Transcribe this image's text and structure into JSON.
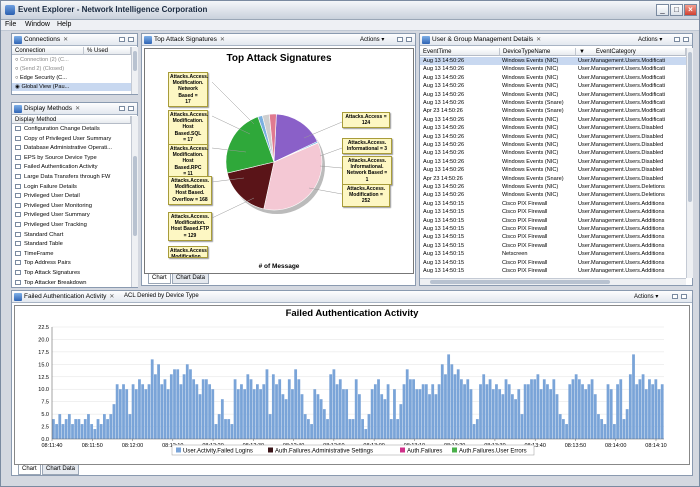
{
  "window": {
    "title": "Event Explorer - Network Intelligence Corporation"
  },
  "menu": [
    "File",
    "Window",
    "Help"
  ],
  "connections": {
    "tab": "Connections",
    "headers": [
      "Connection",
      "% Used"
    ],
    "rows": [
      "Connection (2) (C...",
      "(Send 2) (Closed)",
      "Edge Security (C...",
      "Global View (Pau..."
    ]
  },
  "display_methods": {
    "tab": "Display Methods",
    "header": "Display Method",
    "items": [
      "Configuration Change Details",
      "Copy of Privileged User Summary",
      "Database Administrative Operati...",
      "EPS by Source Device Type",
      "Failed Authentication Activity",
      "Large Data Transfers through FW",
      "Login Failure Details",
      "Privileged User Detail",
      "Privileged User Monitoring",
      "Privileged User Summary",
      "Privileged User Tracking",
      "Standard Chart",
      "Standard Table",
      "TimeFrame",
      "Top Address Pairs",
      "Top Attack Signatures",
      "Top Attacker Breakdown"
    ]
  },
  "pie_panel": {
    "tab": "Top Attack Signatures",
    "actions": "Actions",
    "title": "Top Attack Signatures",
    "xlabel": "# of Message",
    "bottom_tabs": [
      "Chart",
      "Chart Data"
    ],
    "callouts_left": [
      "Attacks.Access.\nModification.\nNetwork Based =\n17",
      "Attacks.Access.\nModification.\nHost Based.SQL\n= 17",
      "Attacks.Access.\nModification.\nHost Based.RPC\n= 11",
      "Attacks.Access.\nModification.\nHost Based.\nOverflow = 168",
      "Attacks.Access.\nModification.\nHost Based.FTP\n= 129",
      "Attacks.Access.\nModification..."
    ],
    "callouts_right": [
      "Attacks.Access =\n124",
      "Attacks.Access.\nInformational = 3",
      "Attacks.Access.\nInformational.\nNetwork Based =\n1",
      "Attacks.Access.\nModification =\n252"
    ]
  },
  "events_panel": {
    "tab": "User & Group Management Details",
    "actions": "Actions",
    "headers": [
      "EventTime",
      "DeviceTypeName",
      "EventCategory"
    ],
    "rows": [
      [
        "Aug 13 14:50:26",
        "Windows Events (NIC)",
        "User.Management.Users.Modificati"
      ],
      [
        "Aug 13 14:50:26",
        "Windows Events (NIC)",
        "User.Management.Users.Modificati"
      ],
      [
        "Aug 13 14:50:26",
        "Windows Events (NIC)",
        "User.Management.Users.Modificati"
      ],
      [
        "Aug 13 14:50:26",
        "Windows Events (NIC)",
        "User.Management.Users.Modificati"
      ],
      [
        "Aug 13 14:50:26",
        "Windows Events (NIC)",
        "User.Management.Users.Modificati"
      ],
      [
        "Aug 13 14:50:26",
        "Windows Events (Snare)",
        "User.Management.Users.Modificati"
      ],
      [
        "Apr 23 14:50:26",
        "Windows Events (Snare)",
        "User.Management.Users.Modificati"
      ],
      [
        "Aug 13 14:50:26",
        "Windows Events (NIC)",
        "User.Management.Users.Modificati"
      ],
      [
        "Aug 13 14:50:26",
        "Windows Events (NIC)",
        "User.Management.Users.Disabled"
      ],
      [
        "Aug 13 14:50:26",
        "Windows Events (NIC)",
        "User.Management.Users.Disabled"
      ],
      [
        "Aug 13 14:50:26",
        "Windows Events (NIC)",
        "User.Management.Users.Disabled"
      ],
      [
        "Aug 13 14:50:26",
        "Windows Events (NIC)",
        "User.Management.Users.Disabled"
      ],
      [
        "Aug 13 14:50:26",
        "Windows Events (NIC)",
        "User.Management.Users.Disabled"
      ],
      [
        "Aug 13 14:50:26",
        "Windows Events (NIC)",
        "User.Management.Users.Disabled"
      ],
      [
        "Apr 23 14:50:26",
        "Windows Events (Snare)",
        "User.Management.Users.Disabled"
      ],
      [
        "Aug 13 14:50:26",
        "Windows Events (NIC)",
        "User.Management.Users.Deletions"
      ],
      [
        "Aug 13 14:50:26",
        "Windows Events (NIC)",
        "User.Management.Users.Deletions"
      ],
      [
        "Aug 13 14:50:15",
        "Cisco PIX Firewall",
        "User.Management.Users.Additions"
      ],
      [
        "Aug 13 14:50:15",
        "Cisco PIX Firewall",
        "User.Management.Users.Additions"
      ],
      [
        "Aug 13 14:50:15",
        "Cisco PIX Firewall",
        "User.Management.Users.Additions"
      ],
      [
        "Aug 13 14:50:15",
        "Cisco PIX Firewall",
        "User.Management.Users.Additions"
      ],
      [
        "Aug 13 14:50:15",
        "Cisco PIX Firewall",
        "User.Management.Users.Additions"
      ],
      [
        "Aug 13 14:50:15",
        "Cisco PIX Firewall",
        "User.Management.Users.Additions"
      ],
      [
        "Aug 13 14:50:15",
        "Netscreen",
        "User.Management.Users.Additions"
      ],
      [
        "Aug 13 14:50:15",
        "Cisco PIX Firewall",
        "User.Management.Users.Additions"
      ],
      [
        "Aug 13 14:50:15",
        "Cisco PIX Firewall",
        "User.Management.Users.Additions"
      ]
    ]
  },
  "bottom_panel": {
    "tabs": [
      "Failed Authentication Activity",
      "ACL Denied by Device Type"
    ],
    "actions": "Actions",
    "bottom_tabs": [
      "Chart",
      "Chart Data"
    ]
  },
  "pie_chart_data": {
    "type": "pie",
    "title": "Top Attack Signatures",
    "xlabel": "# of Message",
    "categories": [
      "Attacks.Access",
      "Attacks.Access.Informational",
      "Attacks.Access.Informational.Network Based",
      "Attacks.Access.Modification",
      "Attacks.Access.Modification.Host Based.FTP",
      "Attacks.Access.Modification.Host Based.Overflow",
      "Attacks.Access.Modification.Host Based.RPC",
      "Attacks.Access.Modification.Host Based.SQL",
      "Attacks.Access.Modification.Network Based"
    ],
    "values": [
      124,
      3,
      1,
      252,
      129,
      168,
      11,
      17,
      17
    ],
    "colors": [
      "#8a60c8",
      "#3a9ad8",
      "#e8d070",
      "#f4c8d4",
      "#5a1418",
      "#2fa83a",
      "#7ab0e0",
      "#cfcfcf",
      "#e07a90"
    ]
  },
  "chart_data": {
    "type": "bar",
    "title": "Failed Authentication Activity",
    "ylim": [
      0,
      22.5
    ],
    "yticks": [
      "0.0",
      "2.5",
      "5.0",
      "7.5",
      "10.0",
      "12.5",
      "15.0",
      "17.5",
      "20.0",
      "22.5"
    ],
    "xticks": [
      "08:11:40",
      "08:11:50",
      "08:12:00",
      "08:12:10",
      "08:12:20",
      "08:12:30",
      "08:12:40",
      "08:12:50",
      "08:13:00",
      "08:13:10",
      "08:13:20",
      "08:13:30",
      "08:13:40",
      "08:13:50",
      "08:14:00",
      "08:14:10"
    ],
    "series_names": [
      "User.Activity.Failed Logins",
      "Auth.Failures.Administrative Settings",
      "Auth.Failures",
      "Auth.Failures.User Errors"
    ],
    "colors": [
      "#7aa4d8",
      "#3a1418",
      "#d0308a",
      "#4ab04a"
    ],
    "series": [
      {
        "name": "User.Activity.Failed Logins",
        "values": [
          4,
          3,
          5,
          3,
          4,
          5,
          3,
          4,
          4,
          3,
          4,
          5,
          3,
          2,
          4,
          3,
          5,
          4,
          5,
          7,
          11,
          10,
          11,
          10,
          5,
          11,
          10,
          12,
          11,
          10,
          11,
          16,
          13,
          15,
          11,
          12,
          10,
          13,
          14,
          14,
          11,
          13,
          15,
          14,
          12,
          11,
          9,
          12,
          12,
          11,
          10,
          3,
          5,
          8,
          4,
          4,
          3,
          12,
          10,
          11,
          10,
          13,
          12,
          10,
          11,
          10,
          11,
          14,
          5,
          13,
          11,
          12,
          9,
          8,
          12,
          10,
          14,
          12,
          9,
          5,
          4,
          3,
          10,
          9,
          8,
          6,
          4,
          13,
          14,
          11,
          12,
          10,
          10,
          4,
          4,
          12,
          9,
          4,
          2,
          5,
          10,
          11,
          12,
          9,
          8,
          11,
          4,
          10,
          4,
          7,
          11,
          14,
          12,
          12,
          10,
          10,
          11,
          11,
          9,
          11,
          9,
          11,
          15,
          13,
          17,
          15,
          13,
          14,
          12,
          11,
          12,
          10,
          3,
          4,
          11,
          13,
          11,
          12,
          10,
          11,
          10,
          9,
          12,
          11,
          9,
          8,
          10,
          5,
          11,
          11,
          12,
          12,
          13,
          10,
          12,
          11,
          10,
          12,
          9,
          5,
          4,
          3,
          11,
          12,
          13,
          12,
          11,
          10,
          11,
          12,
          9,
          5,
          4,
          3,
          11,
          10,
          3,
          11,
          12,
          4,
          6,
          13,
          17,
          11,
          12,
          13,
          10,
          12,
          11,
          12,
          10,
          11
        ]
      },
      {
        "name": "Auth.Failures.Administrative Settings",
        "values": [
          0,
          0,
          0,
          0,
          0,
          0,
          0,
          0,
          0,
          0,
          0,
          0,
          0,
          0,
          0,
          0,
          0,
          0,
          0,
          0,
          0,
          0,
          0,
          0,
          0,
          0,
          0,
          0,
          0,
          0,
          0,
          0,
          0,
          0,
          0,
          0,
          0,
          0,
          0,
          0,
          0,
          0,
          0,
          0,
          0,
          0,
          0,
          0,
          0,
          0,
          0,
          0,
          0,
          0,
          0,
          0,
          0,
          0,
          0,
          0,
          0,
          0,
          0,
          0,
          0,
          0,
          0,
          0,
          0,
          0,
          0,
          0,
          0,
          0,
          0,
          0,
          0,
          0,
          0,
          0,
          0,
          0,
          0,
          0,
          0,
          0,
          0,
          0,
          0,
          0,
          0,
          0,
          0,
          0,
          0,
          0,
          0,
          0,
          0,
          0,
          0,
          0,
          0,
          0,
          0,
          0,
          0,
          0,
          0,
          0,
          0,
          0,
          0,
          0,
          0,
          0,
          0,
          0,
          0,
          0,
          0,
          0,
          0,
          0,
          0,
          0,
          0,
          0,
          0,
          0,
          0,
          0,
          0,
          0,
          0,
          0,
          0,
          0,
          0,
          0,
          0,
          0,
          0,
          0,
          0,
          0,
          0,
          0,
          0,
          0,
          0,
          0,
          0,
          0,
          0,
          0,
          0,
          0,
          0,
          0,
          0,
          0,
          0,
          0,
          0,
          0,
          0,
          0,
          0,
          0,
          0,
          0,
          0,
          0,
          0,
          0,
          0,
          0,
          0,
          0,
          0,
          0,
          0,
          0,
          0,
          0,
          0,
          0,
          0,
          0,
          0,
          0
        ]
      },
      {
        "name": "Auth.Failures",
        "values": [
          0,
          0,
          0,
          0,
          0,
          0,
          0,
          0,
          0,
          0,
          0,
          0,
          0,
          0,
          0,
          0,
          0,
          0,
          0,
          0,
          0,
          0,
          0,
          0,
          0,
          0,
          0,
          0,
          0,
          0,
          0,
          0,
          0,
          0,
          0,
          0,
          0,
          0,
          0,
          0,
          0,
          0,
          0,
          0,
          0,
          0,
          0,
          0,
          0,
          0,
          0,
          0,
          0,
          0,
          0,
          0,
          0,
          0,
          0,
          0,
          0,
          0,
          0,
          0,
          0,
          0,
          0,
          0,
          0,
          0,
          0,
          0,
          0,
          0,
          0,
          0,
          0,
          0,
          0,
          0,
          0,
          0,
          0,
          0,
          0,
          0,
          0,
          0,
          0,
          0,
          0,
          0,
          0,
          0,
          0,
          0,
          0,
          0,
          0,
          0,
          0,
          0,
          0,
          0,
          0,
          0,
          0,
          0,
          0,
          0,
          0,
          0,
          0,
          0,
          0,
          0,
          0,
          0,
          0,
          0,
          0,
          0,
          0,
          0,
          0,
          0,
          0,
          0,
          0,
          0,
          0,
          0,
          0,
          0,
          0,
          0,
          0,
          0,
          0,
          0,
          0,
          0,
          0,
          0,
          0,
          0,
          0,
          0,
          0,
          0,
          0,
          0,
          0,
          0,
          0,
          0,
          0,
          0,
          0,
          0,
          0,
          0,
          0,
          0,
          0,
          0,
          0,
          0,
          0,
          0,
          0,
          0,
          0,
          0,
          0,
          0,
          0,
          0,
          0,
          0,
          0,
          0,
          0,
          0,
          0,
          0,
          0,
          0,
          0,
          0,
          0,
          0
        ]
      },
      {
        "name": "Auth.Failures.User Errors",
        "values": [
          0,
          0,
          0,
          0,
          0,
          0,
          0,
          0,
          0,
          0,
          0,
          0,
          0,
          0,
          0,
          0,
          0,
          0,
          0,
          0,
          0,
          0,
          0,
          0,
          0,
          0,
          0,
          0,
          0,
          0,
          0,
          0,
          0,
          0,
          0,
          0,
          0,
          0,
          0,
          0,
          0,
          0,
          0,
          0,
          0,
          0,
          0,
          0,
          0,
          0,
          0,
          0,
          0,
          0,
          0,
          0,
          0,
          0,
          0,
          0,
          0,
          0,
          0,
          0,
          0,
          0,
          0,
          0,
          0,
          0,
          0,
          0,
          0,
          0,
          0,
          0,
          0,
          0,
          0,
          0,
          0,
          0,
          0,
          0,
          0,
          0,
          0,
          0,
          0,
          0,
          0,
          0,
          0,
          0,
          0,
          0,
          0,
          0,
          0,
          0,
          0,
          0,
          0,
          0,
          0,
          0,
          0,
          0,
          0,
          0,
          0,
          0,
          0,
          0,
          0,
          0,
          0,
          0,
          0,
          0,
          0,
          0,
          0,
          0,
          0,
          0,
          0,
          0,
          0,
          0,
          0,
          0,
          0,
          0,
          0,
          0,
          0,
          0,
          0,
          0,
          0,
          0,
          0,
          0,
          0,
          0,
          0,
          0,
          0,
          0,
          0,
          0,
          0,
          0,
          0,
          0,
          0,
          0,
          0,
          0,
          0,
          0,
          0,
          0,
          0,
          0,
          0,
          0,
          0,
          0,
          0,
          0,
          0,
          0,
          0,
          0,
          0,
          0,
          0,
          0,
          0,
          0,
          0,
          0,
          0,
          0,
          0,
          0,
          0,
          0,
          0,
          0
        ]
      }
    ]
  }
}
